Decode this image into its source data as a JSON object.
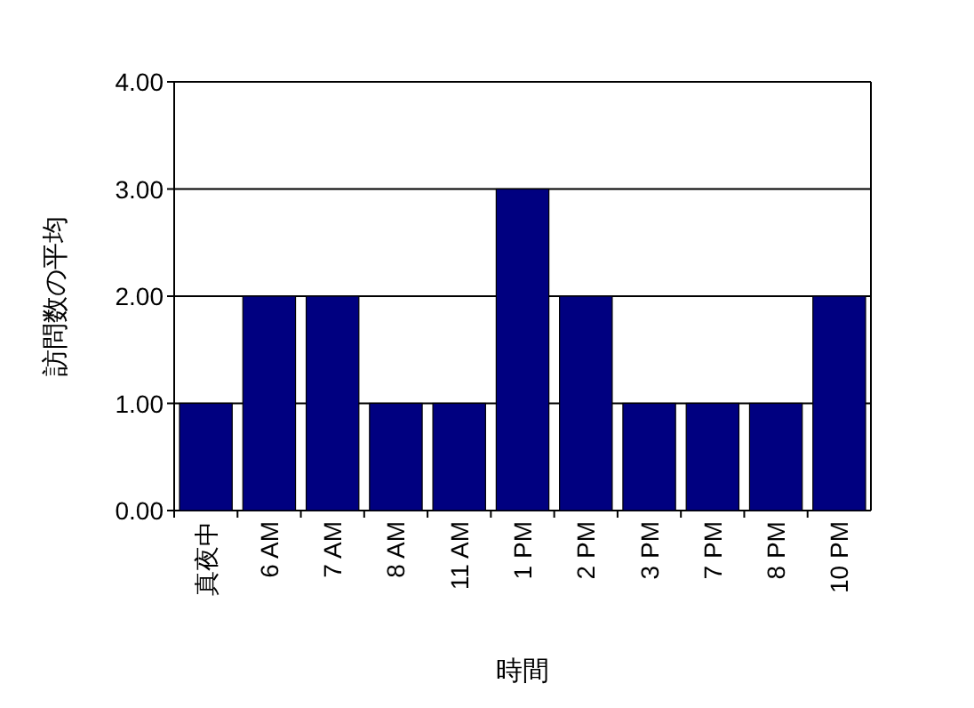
{
  "chart_data": {
    "type": "bar",
    "xlabel": "時間",
    "ylabel": "訪問数の平均",
    "categories": [
      "真夜中",
      "6 AM",
      "7 AM",
      "8 AM",
      "11 AM",
      "1 PM",
      "2 PM",
      "3 PM",
      "7 PM",
      "8 PM",
      "10 PM"
    ],
    "values": [
      1,
      2,
      2,
      1,
      1,
      3,
      2,
      1,
      1,
      1,
      2
    ],
    "color": "#000080",
    "ylim": [
      0,
      4
    ],
    "yticks": [
      {
        "value": 0,
        "label": "0.00"
      },
      {
        "value": 1,
        "label": "1.00"
      },
      {
        "value": 2,
        "label": "2.00"
      },
      {
        "value": 3,
        "label": "3.00"
      },
      {
        "value": 4,
        "label": "4.00"
      }
    ],
    "grid": "y"
  }
}
